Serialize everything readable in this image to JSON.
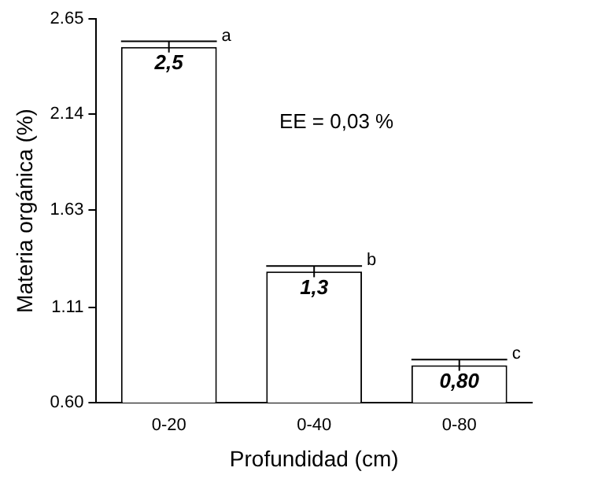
{
  "chart_data": {
    "type": "bar",
    "xlabel": "Profundidad (cm)",
    "ylabel": "Materia orgánica (%)",
    "categories": [
      "0-20",
      "0-40",
      "0-80"
    ],
    "series": [
      {
        "color": "#ffffff",
        "values": [
          2.5,
          1.3,
          0.8
        ],
        "errors": [
          0.03,
          0.03,
          0.03
        ],
        "value_labels": [
          "2,5",
          "1,3",
          "0,80"
        ]
      }
    ],
    "ylim": [
      0.6,
      2.65
    ],
    "yticks": [
      {
        "value": 0.6,
        "label": "0.60"
      },
      1.11,
      1.63,
      2.14,
      2.65
    ],
    "grid": false,
    "legend": false,
    "annotations": [
      "a",
      "b",
      "c",
      "EE = 0,03 %"
    ]
  }
}
